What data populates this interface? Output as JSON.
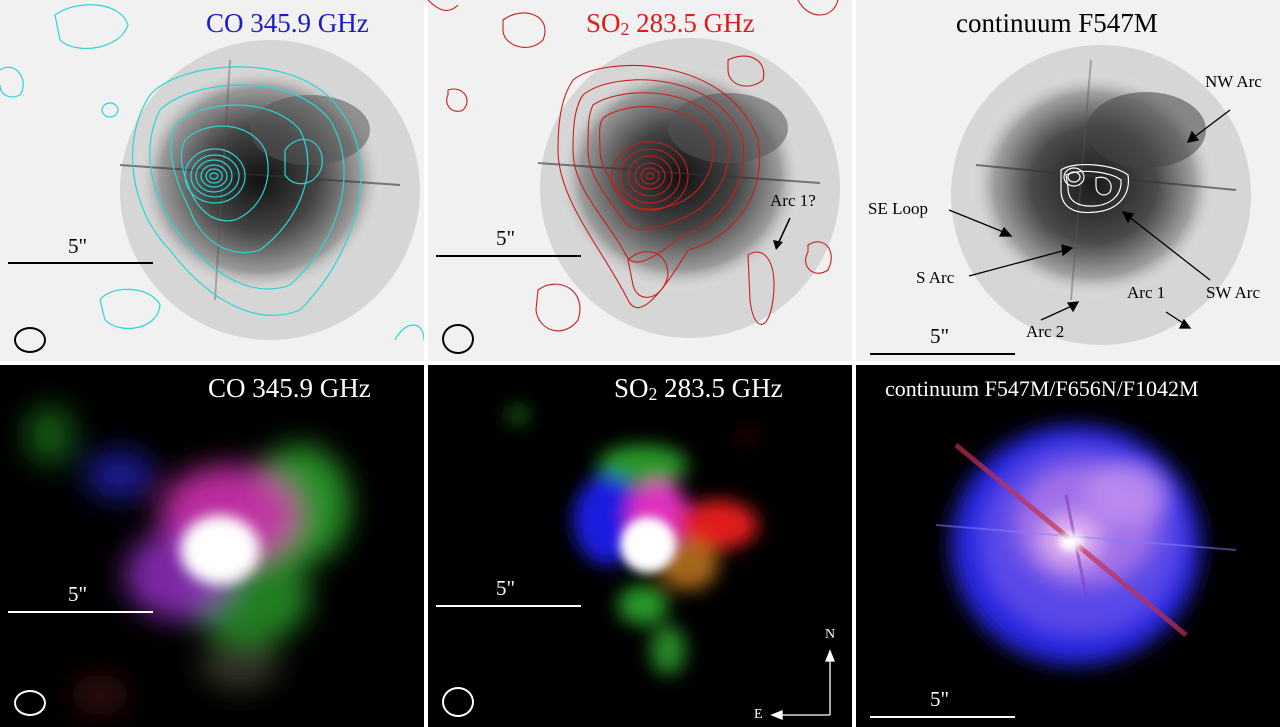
{
  "figure": {
    "panels": [
      {
        "id": "top-left",
        "title_pre": "CO 345.9 GHz",
        "title_sub": "",
        "title_post": "",
        "title_color": "#1a1acc",
        "scale_label": "5\"",
        "contour_color": "#2dd4d4"
      },
      {
        "id": "top-middle",
        "title_pre": "SO",
        "title_sub": "2",
        "title_post": " 283.5 GHz",
        "title_color": "#e01b1b",
        "scale_label": "5\"",
        "contour_color": "#c81e1e",
        "annotations": [
          "Arc 1?"
        ]
      },
      {
        "id": "top-right",
        "title_pre": "continuum F547M",
        "title_sub": "",
        "title_post": "",
        "title_color": "#000000",
        "scale_label": "5\"",
        "annotations": [
          "NW Arc",
          "SE Loop",
          "S Arc",
          "SW Arc",
          "Arc 1",
          "Arc 2"
        ]
      },
      {
        "id": "bottom-left",
        "title_pre": "CO 345.9 GHz",
        "title_sub": "",
        "title_post": "",
        "title_color": "#ffffff",
        "scale_label": "5\""
      },
      {
        "id": "bottom-middle",
        "title_pre": "SO",
        "title_sub": "2",
        "title_post": " 283.5 GHz",
        "title_color": "#ffffff",
        "scale_label": "5\"",
        "compass": {
          "north": "N",
          "east": "E"
        }
      },
      {
        "id": "bottom-right",
        "title_pre": "continuum F547M/F656N/F1042M",
        "title_sub": "",
        "title_post": "",
        "title_color": "#ffffff",
        "scale_label": "5\""
      }
    ]
  }
}
